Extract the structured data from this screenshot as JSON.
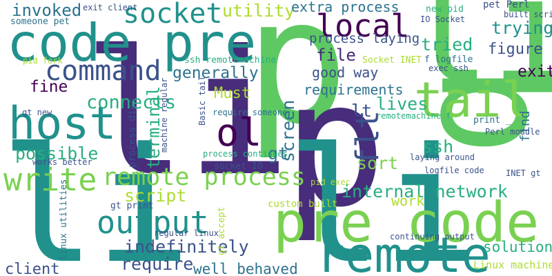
{
  "palette": {
    "deep_purple": "#440154",
    "indigo": "#472d7b",
    "slate_blue": "#3b528b",
    "steel_blue": "#2c728e",
    "teal": "#21918c",
    "green_teal": "#28ae80",
    "green": "#5ec962",
    "lime": "#addc30",
    "yellow": "#fde725"
  },
  "words": [
    {
      "text": "p",
      "color": "#5ec962"
    },
    {
      "text": "li",
      "color": "#5ec962"
    },
    {
      "text": "li",
      "color": "#472d7b"
    },
    {
      "text": "p",
      "color": "#472d7b"
    },
    {
      "text": "q",
      "color": "#5ec962"
    },
    {
      "text": "li li",
      "color": "#21918c"
    },
    {
      "text": "pre code",
      "color": "#7ad151"
    },
    {
      "text": "code pre",
      "color": "#21918c"
    },
    {
      "text": "remote",
      "color": "#21918c"
    },
    {
      "text": "host",
      "color": "#21918c"
    },
    {
      "text": "tail",
      "color": "#7ad151"
    },
    {
      "text": "socket",
      "color": "#21918c"
    },
    {
      "text": "local",
      "color": "#440154"
    },
    {
      "text": "command",
      "color": "#3b528b"
    },
    {
      "text": "ol",
      "color": "#440154"
    },
    {
      "text": "write",
      "color": "#7ad151"
    },
    {
      "text": "remote process",
      "color": "#7ad151"
    },
    {
      "text": "output",
      "color": "#21918c"
    },
    {
      "text": "flt",
      "color": "#3b528b"
    },
    {
      "text": "invoked",
      "color": "#2c728e"
    },
    {
      "text": "utility",
      "color": "#addc30"
    },
    {
      "text": "extra process",
      "color": "#2c728e"
    },
    {
      "text": "process laying",
      "color": "#3b528b"
    },
    {
      "text": "file",
      "color": "#472d7b"
    },
    {
      "text": "tried",
      "color": "#28ae80"
    },
    {
      "text": "trying",
      "color": "#21918c"
    },
    {
      "text": "figure",
      "color": "#3b528b"
    },
    {
      "text": "generally",
      "color": "#2c728e"
    },
    {
      "text": "good way",
      "color": "#3b528b"
    },
    {
      "text": "exit",
      "color": "#440154"
    },
    {
      "text": "fine",
      "color": "#440154"
    },
    {
      "text": "requirements",
      "color": "#2c728e"
    },
    {
      "text": "Must",
      "color": "#addc30"
    },
    {
      "text": "connects",
      "color": "#28ae80"
    },
    {
      "text": "lives",
      "color": "#28ae80"
    },
    {
      "text": "lt",
      "color": "#3b528b"
    },
    {
      "text": "terminal",
      "color": "#28ae80"
    },
    {
      "text": "screen",
      "color": "#2c728e"
    },
    {
      "text": "possible",
      "color": "#28ae80"
    },
    {
      "text": "gt",
      "color": "#2c728e"
    },
    {
      "text": "ssh",
      "color": "#28ae80"
    },
    {
      "text": "sort",
      "color": "#7ad151"
    },
    {
      "text": "find",
      "color": "#2c728e"
    },
    {
      "text": "internal network",
      "color": "#28ae80"
    },
    {
      "text": "script",
      "color": "#addc30"
    },
    {
      "text": "work",
      "color": "#addc30"
    },
    {
      "text": "indefinitely",
      "color": "#3b528b"
    },
    {
      "text": "solutions",
      "color": "#28ae80"
    },
    {
      "text": "require",
      "color": "#3b528b"
    },
    {
      "text": "client",
      "color": "#3b528b"
    },
    {
      "text": "well behaved",
      "color": "#2c728e"
    },
    {
      "text": "Linux machines",
      "color": "#addc30"
    },
    {
      "text": "someone pet",
      "color": "#2c728e"
    },
    {
      "text": "exit client",
      "color": "#3b528b"
    },
    {
      "text": "new pid",
      "color": "#28ae80"
    },
    {
      "text": "pet Perl",
      "color": "#3b528b"
    },
    {
      "text": "built script",
      "color": "#3b528b"
    },
    {
      "text": "IO Socket",
      "color": "#3b528b"
    },
    {
      "text": "Socket INET",
      "color": "#addc30"
    },
    {
      "text": "f logfile",
      "color": "#2c728e"
    },
    {
      "text": "exec ssh",
      "color": "#3b528b"
    },
    {
      "text": "pid fork",
      "color": "#addc30"
    },
    {
      "text": "ssh remotemachine",
      "color": "#28ae80"
    },
    {
      "text": "Basic tail",
      "color": "#3b528b"
    },
    {
      "text": "require someone",
      "color": "#2c728e"
    },
    {
      "text": "remotemachine f",
      "color": "#28ae80"
    },
    {
      "text": "print _",
      "color": "#2c728e"
    },
    {
      "text": "Perl module",
      "color": "#3b528b"
    },
    {
      "text": "INET gt",
      "color": "#3b528b"
    },
    {
      "text": "gt new",
      "color": "#3b528b"
    },
    {
      "text": "works better",
      "color": "#3b528b"
    },
    {
      "text": "process dies",
      "color": "#3b528b"
    },
    {
      "text": "machine regular",
      "color": "#3b528b"
    },
    {
      "text": "process continues",
      "color": "#28ae80"
    },
    {
      "text": "socket IO",
      "color": "#3b528b"
    },
    {
      "text": "laying around",
      "color": "#3b528b"
    },
    {
      "text": "logfile code",
      "color": "#3b528b"
    },
    {
      "text": "pid exec",
      "color": "#addc30"
    },
    {
      "text": "gt print",
      "color": "#3b528b"
    },
    {
      "text": "linux utilities",
      "color": "#2c728e"
    },
    {
      "text": "regular linux",
      "color": "#3b528b"
    },
    {
      "text": "gt accept",
      "color": "#addc30"
    },
    {
      "text": "custom built",
      "color": "#addc30"
    },
    {
      "text": "continuing output",
      "color": "#3b528b"
    },
    {
      "text": "_ code",
      "color": "#3b528b"
    }
  ]
}
